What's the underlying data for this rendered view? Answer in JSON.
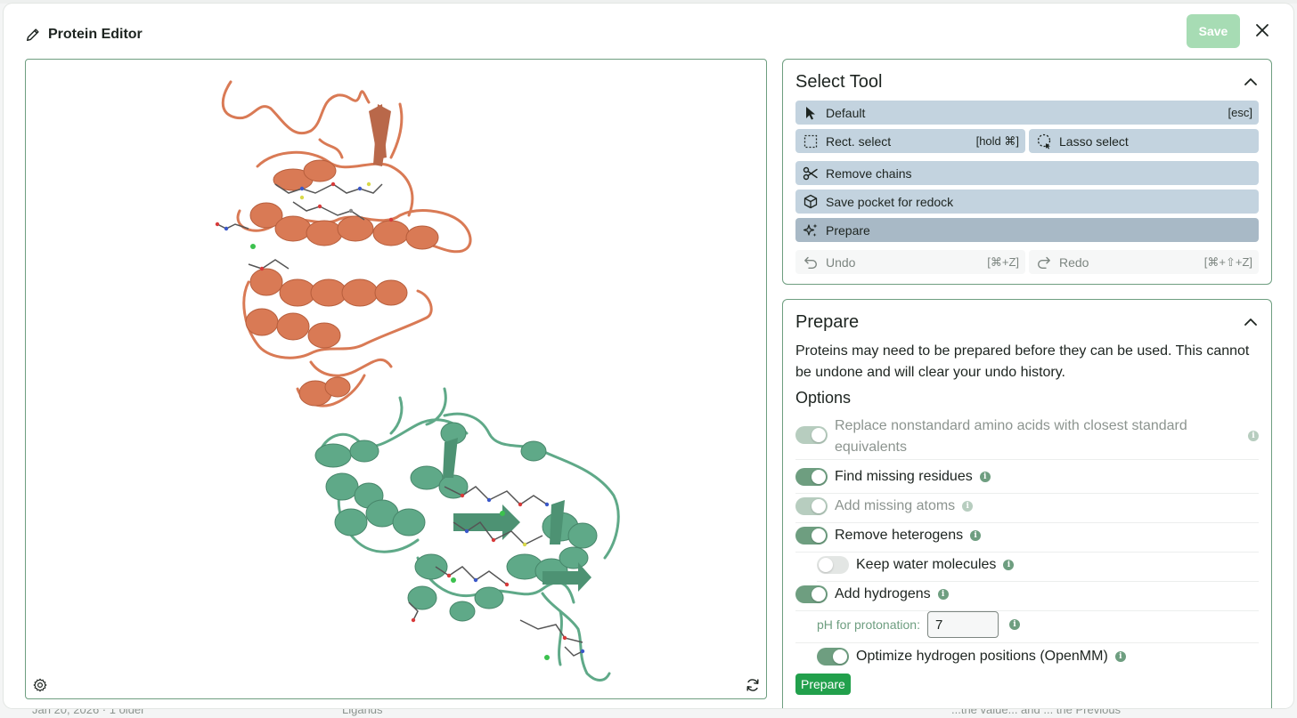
{
  "app": {
    "title": "Protein Editor",
    "save_label": "Save",
    "close_icon": "close-icon"
  },
  "background": {
    "left_text": "Jan 20, 2026 · 1 older",
    "mid_text": "Ligands",
    "right_text": "...the value... and ... the Previous"
  },
  "viewer": {
    "settings_icon": "gear-icon",
    "reset_icon": "refresh-icon",
    "chain_colors": {
      "chain_a": "#d97a55",
      "chain_b": "#5fa988"
    }
  },
  "select_tool": {
    "title": "Select Tool",
    "default": {
      "label": "Default",
      "shortcut": "[esc]"
    },
    "rect": {
      "label": "Rect. select",
      "shortcut": "[hold ⌘]"
    },
    "lasso": {
      "label": "Lasso select"
    },
    "remove_chains": {
      "label": "Remove chains"
    },
    "save_pocket": {
      "label": "Save pocket for redock"
    },
    "prepare": {
      "label": "Prepare"
    },
    "undo": {
      "label": "Undo",
      "shortcut": "[⌘+Z]"
    },
    "redo": {
      "label": "Redo",
      "shortcut": "[⌘+⇧+Z]"
    }
  },
  "prepare": {
    "title": "Prepare",
    "description": "Proteins may need to be prepared before they can be used. This cannot be undone and will clear your undo history.",
    "options_title": "Options",
    "options": {
      "replace_nonstandard": {
        "label": "Replace nonstandard amino acids with closest standard equivalents",
        "on": true,
        "disabled": true
      },
      "find_missing_residues": {
        "label": "Find missing residues",
        "on": true
      },
      "add_missing_atoms": {
        "label": "Add missing atoms",
        "on": true,
        "disabled": true
      },
      "remove_heterogens": {
        "label": "Remove heterogens",
        "on": true
      },
      "keep_water": {
        "label": "Keep water molecules",
        "on": false
      },
      "add_hydrogens": {
        "label": "Add hydrogens",
        "on": true
      },
      "ph_label": "pH for protonation:",
      "ph_value": "7",
      "optimize_hydrogens": {
        "label": "Optimize hydrogen positions (OpenMM)",
        "on": true
      }
    },
    "button_label": "Prepare"
  }
}
